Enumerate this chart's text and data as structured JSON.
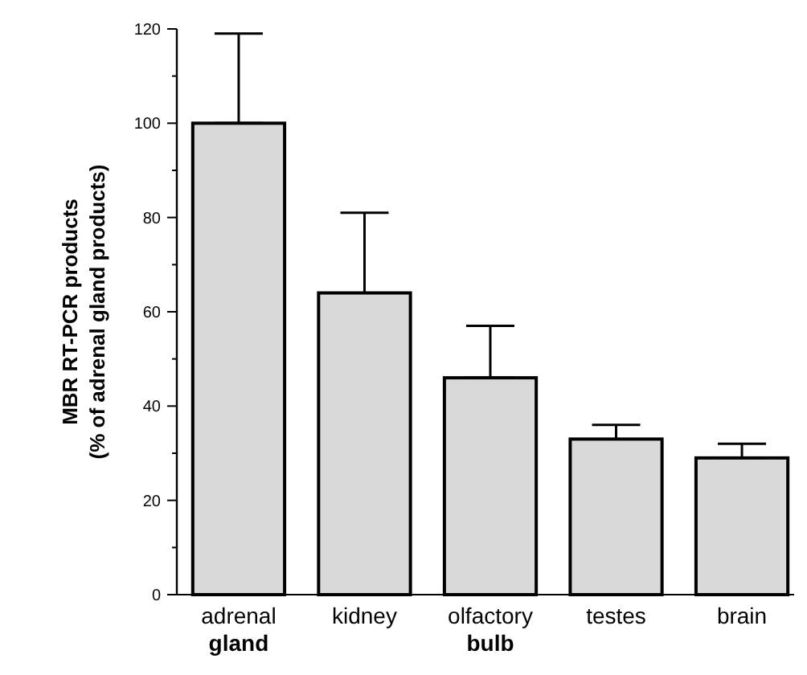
{
  "chart_data": {
    "type": "bar",
    "ylabel": "MBR RT-PCR products\n(% of adrenal gland products)",
    "categories": [
      "adrenal\ngland",
      "kidney",
      "olfactory\nbulb",
      "testes",
      "brain"
    ],
    "values": [
      100,
      64,
      46,
      33,
      29
    ],
    "errors": [
      [
        100,
        119
      ],
      [
        64,
        81
      ],
      [
        46,
        57
      ],
      [
        33,
        36
      ],
      [
        29,
        32
      ]
    ],
    "color": "#d9d9d9",
    "ylim": [
      0,
      120
    ],
    "yticks": [
      0,
      {
        "value": 10,
        "label": null
      },
      20,
      {
        "value": 30,
        "label": null
      },
      40,
      {
        "value": 50,
        "label": null
      },
      60,
      {
        "value": 70,
        "label": null
      },
      80,
      {
        "value": 90,
        "label": null
      },
      100,
      {
        "value": 110,
        "label": null
      },
      120
    ],
    "grid": false
  }
}
